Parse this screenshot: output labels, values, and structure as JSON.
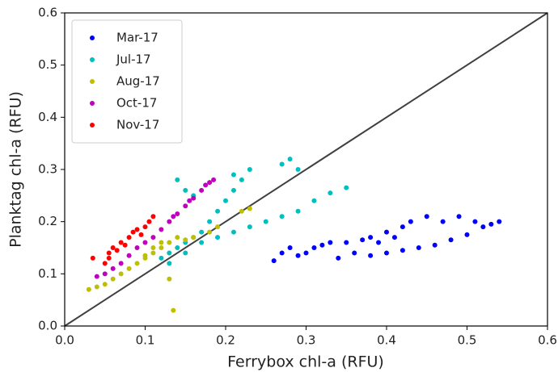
{
  "chart_data": {
    "type": "scatter",
    "xlabel": "Ferrybox chl-a (RFU)",
    "ylabel": "Planktag chl-a (RFU)",
    "xlim": [
      0,
      0.6
    ],
    "ylim": [
      0,
      0.6
    ],
    "xticks": [
      {
        "value": 0,
        "label": "0.0"
      },
      0.1,
      0.2,
      0.3,
      0.4,
      0.5,
      0.6
    ],
    "yticks": [
      {
        "value": 0,
        "label": "0.0"
      },
      0.1,
      0.2,
      0.3,
      0.4,
      0.5,
      0.6
    ],
    "legend": "upper left",
    "series": [
      {
        "name": "Mar-17",
        "color": "#0000ff",
        "x": [
          0.26,
          0.27,
          0.28,
          0.29,
          0.3,
          0.31,
          0.32,
          0.33,
          0.35,
          0.37,
          0.38,
          0.39,
          0.4,
          0.41,
          0.42,
          0.43,
          0.45,
          0.47,
          0.49,
          0.4,
          0.42,
          0.44,
          0.46,
          0.48,
          0.5,
          0.52,
          0.53,
          0.54,
          0.38,
          0.36,
          0.34,
          0.51
        ],
        "values": [
          0.125,
          0.14,
          0.15,
          0.135,
          0.14,
          0.15,
          0.155,
          0.16,
          0.16,
          0.165,
          0.17,
          0.16,
          0.18,
          0.17,
          0.19,
          0.2,
          0.21,
          0.2,
          0.21,
          0.14,
          0.145,
          0.15,
          0.155,
          0.165,
          0.175,
          0.19,
          0.195,
          0.2,
          0.135,
          0.14,
          0.13,
          0.2
        ]
      },
      {
        "name": "Jul-17",
        "color": "#00bfbf",
        "x": [
          0.12,
          0.13,
          0.14,
          0.15,
          0.16,
          0.17,
          0.18,
          0.19,
          0.2,
          0.21,
          0.22,
          0.23,
          0.21,
          0.14,
          0.15,
          0.27,
          0.28,
          0.29,
          0.25,
          0.27,
          0.29,
          0.31,
          0.33,
          0.35,
          0.17,
          0.19,
          0.21,
          0.13,
          0.15,
          0.16,
          0.23
        ],
        "values": [
          0.13,
          0.14,
          0.15,
          0.16,
          0.17,
          0.18,
          0.2,
          0.22,
          0.24,
          0.26,
          0.28,
          0.3,
          0.29,
          0.28,
          0.26,
          0.31,
          0.32,
          0.3,
          0.2,
          0.21,
          0.22,
          0.24,
          0.255,
          0.265,
          0.16,
          0.17,
          0.18,
          0.12,
          0.14,
          0.25,
          0.19
        ]
      },
      {
        "name": "Aug-17",
        "color": "#bfbf00",
        "x": [
          0.03,
          0.04,
          0.05,
          0.06,
          0.07,
          0.08,
          0.09,
          0.1,
          0.11,
          0.12,
          0.13,
          0.14,
          0.15,
          0.16,
          0.135,
          0.13,
          0.18,
          0.19,
          0.22,
          0.23,
          0.12,
          0.11,
          0.1
        ],
        "values": [
          0.07,
          0.075,
          0.08,
          0.09,
          0.1,
          0.11,
          0.12,
          0.13,
          0.14,
          0.15,
          0.16,
          0.17,
          0.165,
          0.17,
          0.03,
          0.09,
          0.18,
          0.19,
          0.22,
          0.225,
          0.16,
          0.15,
          0.135
        ]
      },
      {
        "name": "Oct-17",
        "color": "#bf00bf",
        "x": [
          0.04,
          0.05,
          0.06,
          0.07,
          0.08,
          0.09,
          0.1,
          0.11,
          0.12,
          0.13,
          0.14,
          0.15,
          0.16,
          0.17,
          0.18,
          0.185,
          0.175,
          0.155,
          0.135
        ],
        "values": [
          0.095,
          0.1,
          0.11,
          0.12,
          0.135,
          0.15,
          0.16,
          0.17,
          0.185,
          0.2,
          0.215,
          0.23,
          0.245,
          0.26,
          0.275,
          0.28,
          0.27,
          0.24,
          0.21
        ]
      },
      {
        "name": "Nov-17",
        "color": "#ff0000",
        "x": [
          0.035,
          0.05,
          0.055,
          0.06,
          0.07,
          0.08,
          0.085,
          0.09,
          0.1,
          0.105,
          0.11,
          0.065,
          0.075,
          0.095,
          0.055
        ],
        "values": [
          0.13,
          0.12,
          0.14,
          0.15,
          0.16,
          0.17,
          0.18,
          0.185,
          0.19,
          0.2,
          0.21,
          0.145,
          0.155,
          0.175,
          0.13
        ]
      }
    ]
  }
}
